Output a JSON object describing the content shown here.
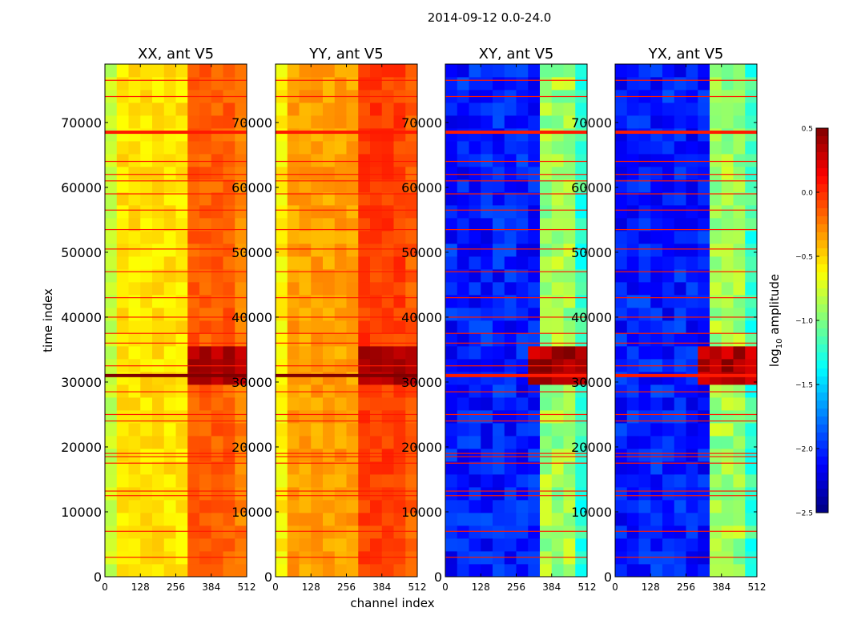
{
  "figure": {
    "title": "2014-09-12 0.0-24.0",
    "xlabel": "channel index",
    "ylabel": "time index"
  },
  "colormap": {
    "name": "jet",
    "stops": [
      "#00007f",
      "#0000ff",
      "#007fff",
      "#00ffff",
      "#7fff7f",
      "#ffff00",
      "#ff7f00",
      "#ff0000",
      "#7f0000"
    ]
  },
  "chart_data": {
    "type": "heatmap",
    "title": "2014-09-12 0.0-24.0",
    "xlabel": "channel index",
    "ylabel": "time index",
    "xlim": [
      0,
      512
    ],
    "ylim": [
      0,
      79000
    ],
    "x_ticks": [
      0,
      128,
      256,
      384,
      512
    ],
    "y_ticks": [
      0,
      10000,
      20000,
      30000,
      40000,
      50000,
      60000,
      70000
    ],
    "colorbar": {
      "label": "log",
      "label_sub": "10",
      "label_rest": " amplitude",
      "range": [
        -2.5,
        0.5
      ],
      "ticks": [
        0.5,
        0.0,
        -0.5,
        -1.0,
        -1.5,
        -2.0,
        -2.5
      ],
      "tick_labels": [
        "0.5",
        "0.0",
        "−0.5",
        "−1.0",
        "−1.5",
        "−2.0",
        "−2.5"
      ]
    },
    "panels": [
      {
        "title": "XX, ant V5",
        "base_level": -0.55,
        "rfi_band": [
          320,
          512
        ],
        "rfi_level": -0.15
      },
      {
        "title": "YY, ant V5",
        "base_level": -0.35,
        "rfi_band": [
          320,
          512
        ],
        "rfi_level": -0.05
      },
      {
        "title": "XY, ant V5",
        "base_level": -2.05,
        "rfi_band": [
          330,
          512
        ],
        "rfi_level": -0.9
      },
      {
        "title": "YX, ant V5",
        "base_level": -2.05,
        "rfi_band": [
          330,
          512
        ],
        "rfi_level": -0.9
      }
    ],
    "flagged_rows": [
      3000,
      7000,
      12500,
      13200,
      17500,
      18500,
      19000,
      24000,
      25000,
      28500,
      31000,
      32500,
      36000,
      37500,
      40000,
      43000,
      47000,
      50500,
      53500,
      56500,
      59000,
      61000,
      62000,
      64000,
      68500,
      74000,
      76500
    ],
    "strong_burst": {
      "time_range": [
        29000,
        35000
      ],
      "channel_range": [
        320,
        512
      ],
      "level": 0.35
    }
  }
}
